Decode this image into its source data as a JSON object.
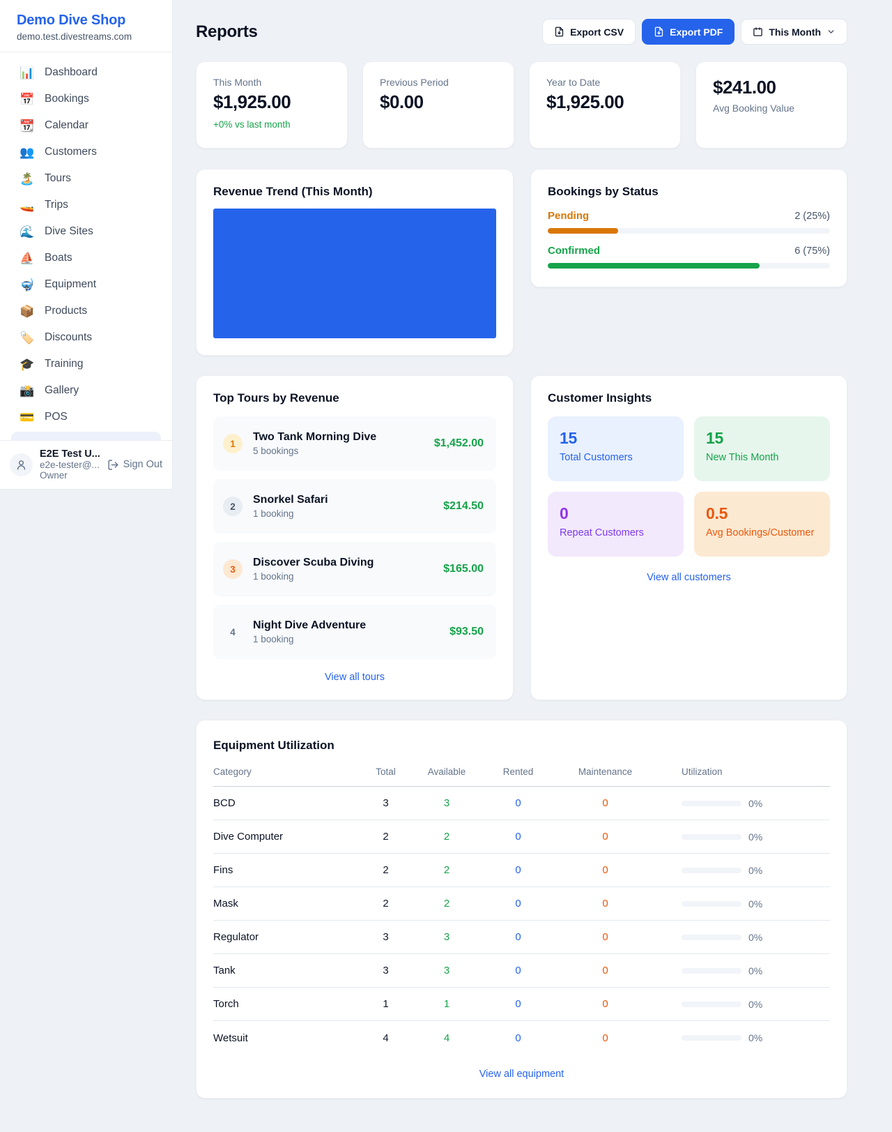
{
  "colors": {
    "accent_blue": "#2563eb",
    "green": "#16a34a",
    "amber": "#d97706",
    "orange": "#ea580c",
    "purple": "#9333ea",
    "link_blue": "#2563eb"
  },
  "sidebar": {
    "title": "Demo Dive Shop",
    "domain": "demo.test.divestreams.com",
    "items": [
      {
        "icon": "📊",
        "label": "Dashboard"
      },
      {
        "icon": "📅",
        "label": "Bookings"
      },
      {
        "icon": "📆",
        "label": "Calendar"
      },
      {
        "icon": "👥",
        "label": "Customers"
      },
      {
        "icon": "🏝️",
        "label": "Tours"
      },
      {
        "icon": "🚤",
        "label": "Trips"
      },
      {
        "icon": "🌊",
        "label": "Dive Sites"
      },
      {
        "icon": "⛵",
        "label": "Boats"
      },
      {
        "icon": "🤿",
        "label": "Equipment"
      },
      {
        "icon": "📦",
        "label": "Products"
      },
      {
        "icon": "🏷️",
        "label": "Discounts"
      },
      {
        "icon": "🎓",
        "label": "Training"
      },
      {
        "icon": "📸",
        "label": "Gallery"
      },
      {
        "icon": "💳",
        "label": "POS"
      }
    ],
    "user": {
      "name": "E2E Test U...",
      "email": "e2e-tester@...",
      "role": "Owner",
      "signout_label": "Sign Out"
    }
  },
  "header": {
    "title": "Reports",
    "export_csv_label": "Export CSV",
    "export_pdf_label": "Export PDF",
    "period_label": "This Month"
  },
  "stats": [
    {
      "label": "This Month",
      "value": "$1,925.00",
      "sub": "+0% vs last month"
    },
    {
      "label": "Previous Period",
      "value": "$0.00"
    },
    {
      "label": "Year to Date",
      "value": "$1,925.00"
    },
    {
      "label": "Avg Booking Value",
      "value": "$241.00"
    }
  ],
  "revenue_trend": {
    "title": "Revenue Trend (This Month)",
    "chart": {
      "type": "area",
      "appearance": "solid-fill",
      "color": "#2563eb"
    }
  },
  "bookings_by_status": {
    "title": "Bookings by Status",
    "rows": [
      {
        "label": "Pending",
        "count": "2 (25%)",
        "pct": 25
      },
      {
        "label": "Confirmed",
        "count": "6 (75%)",
        "pct": 75
      }
    ]
  },
  "top_tours": {
    "title": "Top Tours by Revenue",
    "rows": [
      {
        "rank": "1",
        "name": "Two Tank Morning Dive",
        "bookings": "5 bookings",
        "revenue": "$1,452.00"
      },
      {
        "rank": "2",
        "name": "Snorkel Safari",
        "bookings": "1 booking",
        "revenue": "$214.50"
      },
      {
        "rank": "3",
        "name": "Discover Scuba Diving",
        "bookings": "1 booking",
        "revenue": "$165.00"
      },
      {
        "rank": "4",
        "name": "Night Dive Adventure",
        "bookings": "1 booking",
        "revenue": "$93.50"
      }
    ],
    "view_all_label": "View all tours"
  },
  "customer_insights": {
    "title": "Customer Insights",
    "tiles": [
      {
        "value": "15",
        "label": "Total Customers"
      },
      {
        "value": "15",
        "label": "New This Month"
      },
      {
        "value": "0",
        "label": "Repeat Customers"
      },
      {
        "value": "0.5",
        "label": "Avg Bookings/Customer"
      }
    ],
    "view_all_label": "View all customers"
  },
  "equipment": {
    "title": "Equipment Utilization",
    "columns": [
      "Category",
      "Total",
      "Available",
      "Rented",
      "Maintenance",
      "Utilization"
    ],
    "rows": [
      {
        "category": "BCD",
        "total": "3",
        "available": "3",
        "rented": "0",
        "maintenance": "0",
        "utilization_pct": 0,
        "utilization": "0%"
      },
      {
        "category": "Dive Computer",
        "total": "2",
        "available": "2",
        "rented": "0",
        "maintenance": "0",
        "utilization_pct": 0,
        "utilization": "0%"
      },
      {
        "category": "Fins",
        "total": "2",
        "available": "2",
        "rented": "0",
        "maintenance": "0",
        "utilization_pct": 0,
        "utilization": "0%"
      },
      {
        "category": "Mask",
        "total": "2",
        "available": "2",
        "rented": "0",
        "maintenance": "0",
        "utilization_pct": 0,
        "utilization": "0%"
      },
      {
        "category": "Regulator",
        "total": "3",
        "available": "3",
        "rented": "0",
        "maintenance": "0",
        "utilization_pct": 0,
        "utilization": "0%"
      },
      {
        "category": "Tank",
        "total": "3",
        "available": "3",
        "rented": "0",
        "maintenance": "0",
        "utilization_pct": 0,
        "utilization": "0%"
      },
      {
        "category": "Torch",
        "total": "1",
        "available": "1",
        "rented": "0",
        "maintenance": "0",
        "utilization_pct": 0,
        "utilization": "0%"
      },
      {
        "category": "Wetsuit",
        "total": "4",
        "available": "4",
        "rented": "0",
        "maintenance": "0",
        "utilization_pct": 0,
        "utilization": "0%"
      }
    ],
    "view_all_label": "View all equipment"
  }
}
